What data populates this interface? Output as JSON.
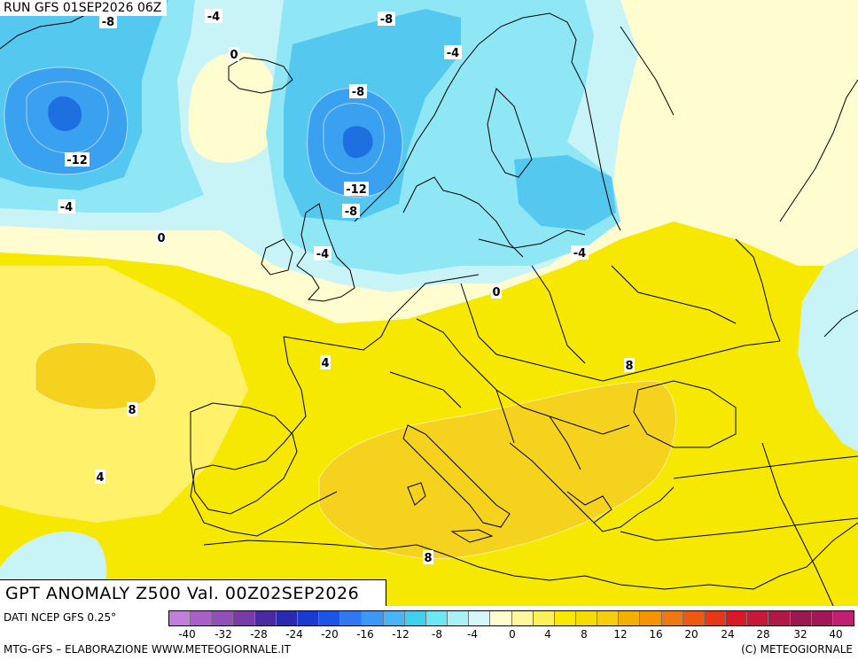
{
  "run_label": "RUN GFS 01SEP2026 06Z",
  "title": "GPT ANOMALY Z500 Val. 00Z02SEP2026",
  "data_source": "DATI NCEP GFS 0.25°",
  "credits_left": "MTG-GFS – ELABORAZIONE WWW.METEOGIORNALE.IT",
  "credits_right": "(C) METEOGIORNALE",
  "colors": {
    "neg_deep": "#1e6fe0",
    "neg_mid": "#3aa0f0",
    "neg_light": "#55c8f0",
    "neg_pale": "#8fe6f4",
    "neg_faint": "#c8f4f8",
    "zero": "#fffcd0",
    "pos_light": "#fff26a",
    "pos_mid": "#f7e800",
    "pos_warm": "#f4d21e"
  },
  "legend": {
    "ticks": [
      "-40",
      "-32",
      "-28",
      "-24",
      "-20",
      "-16",
      "-12",
      "-8",
      "-4",
      "0",
      "4",
      "8",
      "12",
      "16",
      "20",
      "24",
      "28",
      "32",
      "40"
    ],
    "colors": [
      "#c07fd8",
      "#a860c8",
      "#9050b8",
      "#7a3aa8",
      "#4a2aa0",
      "#2a2ab0",
      "#1a3ad0",
      "#1a55e6",
      "#2f78f0",
      "#3b98f4",
      "#4ab4f4",
      "#3fd0f0",
      "#6ee6f4",
      "#a8f2f6",
      "#d4f8f8",
      "#fffcd0",
      "#fff6a0",
      "#fff05a",
      "#fbe800",
      "#f7dc00",
      "#f4cc10",
      "#f4b000",
      "#f39400",
      "#f07810",
      "#ec5a10",
      "#e43818",
      "#d81a28",
      "#c81838",
      "#b01848",
      "#9a1850",
      "#a01858",
      "#c02070"
    ]
  },
  "contour_labels": [
    {
      "text": "-8"
    },
    {
      "text": "-4"
    },
    {
      "text": "-8"
    },
    {
      "text": "0"
    },
    {
      "text": "-4"
    },
    {
      "text": "-8"
    },
    {
      "text": "-12"
    },
    {
      "text": "-12"
    },
    {
      "text": "-8"
    },
    {
      "text": "-4"
    },
    {
      "text": "0"
    },
    {
      "text": "-4"
    },
    {
      "text": "-4"
    },
    {
      "text": "0"
    },
    {
      "text": "4"
    },
    {
      "text": "8"
    },
    {
      "text": "8"
    },
    {
      "text": "4"
    },
    {
      "text": "8"
    }
  ]
}
